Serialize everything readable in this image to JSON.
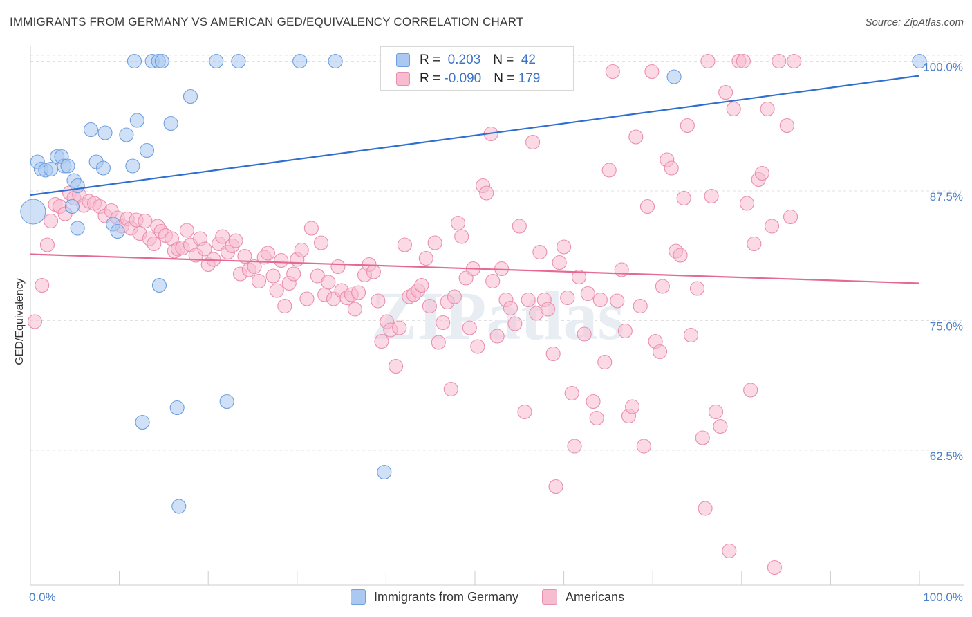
{
  "title": "IMMIGRANTS FROM GERMANY VS AMERICAN GED/EQUIVALENCY CORRELATION CHART",
  "source": "Source: ZipAtlas.com",
  "watermark": "ZIPatlas",
  "legend": {
    "rows": [
      {
        "r_label": "R = ",
        "r_value": " 0.203",
        "n_label": "N = ",
        "n_value": " 42",
        "color": "#aac8f0",
        "border": "#6f9fe0"
      },
      {
        "r_label": "R = ",
        "r_value": "-0.090",
        "n_label": "N = ",
        "n_value": "179",
        "color": "#f7bcd0",
        "border": "#ea8fae"
      }
    ]
  },
  "bottom_legend": [
    {
      "label": "Immigrants from Germany",
      "color": "#aac8f0",
      "border": "#6f9fe0"
    },
    {
      "label": "Americans",
      "color": "#f7bcd0",
      "border": "#ea8fae"
    }
  ],
  "chart_data": {
    "type": "scatter",
    "ylabel": "GED/Equivalency",
    "x_ticks": [
      "0.0%",
      "100.0%"
    ],
    "y_ticks": [
      {
        "value": 100,
        "label": "100.0%"
      },
      {
        "value": 87.5,
        "label": "87.5%"
      },
      {
        "value": 75,
        "label": "75.0%"
      },
      {
        "value": 62.5,
        "label": "62.5%"
      }
    ],
    "xlim": [
      0,
      100
    ],
    "ylim": [
      49.5,
      101.5
    ],
    "grid": true,
    "series": [
      {
        "name": "Immigrants from Germany",
        "color": "#aac8f0",
        "stroke": "#6f9fe0",
        "trend_color": "#2f6fcf",
        "trend": {
          "x": [
            0,
            100
          ],
          "y": [
            87.1,
            98.6
          ]
        },
        "points": [
          [
            0.3,
            85.5,
            18
          ],
          [
            0.8,
            90.3,
            10
          ],
          [
            1.2,
            89.6,
            10
          ],
          [
            1.7,
            89.5,
            10
          ],
          [
            2.3,
            89.6,
            10
          ],
          [
            3.0,
            90.8,
            10
          ],
          [
            3.5,
            90.8,
            10
          ],
          [
            3.8,
            89.9,
            10
          ],
          [
            4.2,
            89.9,
            10
          ],
          [
            4.9,
            88.5,
            10
          ],
          [
            5.3,
            88.0,
            10
          ],
          [
            4.7,
            86.0,
            10
          ],
          [
            5.3,
            83.9,
            10
          ],
          [
            6.8,
            93.4,
            10
          ],
          [
            7.4,
            90.3,
            10
          ],
          [
            8.2,
            89.7,
            10
          ],
          [
            8.4,
            93.1,
            10
          ],
          [
            9.3,
            84.3,
            10
          ],
          [
            9.8,
            83.6,
            10
          ],
          [
            10.8,
            92.9,
            10
          ],
          [
            11.5,
            89.9,
            10
          ],
          [
            11.7,
            100.0,
            10
          ],
          [
            12.0,
            94.3,
            10
          ],
          [
            12.6,
            65.2,
            10
          ],
          [
            13.1,
            91.4,
            10
          ],
          [
            13.7,
            100.0,
            10
          ],
          [
            14.4,
            100.0,
            10
          ],
          [
            14.5,
            78.4,
            10
          ],
          [
            14.8,
            100.0,
            10
          ],
          [
            15.8,
            94.0,
            10
          ],
          [
            16.5,
            66.6,
            10
          ],
          [
            16.7,
            57.1,
            10
          ],
          [
            18.0,
            96.6,
            10
          ],
          [
            20.9,
            100.0,
            10
          ],
          [
            22.1,
            67.2,
            10
          ],
          [
            23.4,
            100.0,
            10
          ],
          [
            30.3,
            100.0,
            10
          ],
          [
            34.3,
            100.0,
            10
          ],
          [
            39.8,
            60.4,
            10
          ],
          [
            47.3,
            100.0,
            10
          ],
          [
            72.4,
            98.5,
            10
          ],
          [
            100.0,
            100.0,
            10
          ]
        ]
      },
      {
        "name": "Americans",
        "color": "#f7bcd0",
        "stroke": "#ea8fae",
        "trend_color": "#e46a93",
        "trend": {
          "x": [
            0,
            100
          ],
          "y": [
            81.4,
            78.6
          ]
        },
        "points": [
          [
            0.5,
            74.9
          ],
          [
            1.3,
            78.4
          ],
          [
            1.9,
            82.3
          ],
          [
            2.3,
            84.6
          ],
          [
            2.8,
            86.2
          ],
          [
            3.3,
            86.0
          ],
          [
            3.9,
            85.3
          ],
          [
            4.4,
            87.3
          ],
          [
            4.9,
            86.8
          ],
          [
            5.5,
            87.1
          ],
          [
            6.0,
            86.1
          ],
          [
            6.6,
            86.5
          ],
          [
            7.2,
            86.3
          ],
          [
            7.8,
            86.0
          ],
          [
            8.4,
            85.1
          ],
          [
            9.1,
            85.6
          ],
          [
            9.8,
            84.9
          ],
          [
            10.3,
            84.1
          ],
          [
            10.9,
            84.8
          ],
          [
            11.3,
            83.9
          ],
          [
            11.9,
            84.7
          ],
          [
            12.3,
            83.4
          ],
          [
            12.9,
            84.6
          ],
          [
            13.4,
            82.9
          ],
          [
            13.9,
            82.4
          ],
          [
            14.3,
            84.1
          ],
          [
            14.7,
            83.6
          ],
          [
            15.2,
            83.2
          ],
          [
            15.9,
            82.9
          ],
          [
            16.2,
            81.7
          ],
          [
            16.6,
            81.9
          ],
          [
            17.1,
            82.0
          ],
          [
            17.6,
            83.7
          ],
          [
            18.0,
            82.3
          ],
          [
            18.6,
            81.3
          ],
          [
            19.1,
            82.9
          ],
          [
            19.6,
            81.9
          ],
          [
            20.0,
            80.4
          ],
          [
            20.6,
            80.9
          ],
          [
            21.2,
            82.4
          ],
          [
            21.6,
            83.1
          ],
          [
            22.2,
            81.6
          ],
          [
            22.7,
            82.2
          ],
          [
            23.1,
            82.7
          ],
          [
            23.6,
            79.5
          ],
          [
            24.1,
            81.2
          ],
          [
            24.6,
            79.9
          ],
          [
            25.2,
            80.2
          ],
          [
            25.7,
            78.8
          ],
          [
            26.3,
            81.1
          ],
          [
            26.7,
            81.5
          ],
          [
            27.3,
            79.3
          ],
          [
            27.7,
            77.9
          ],
          [
            28.2,
            80.8
          ],
          [
            28.6,
            76.4
          ],
          [
            29.1,
            78.6
          ],
          [
            29.6,
            79.5
          ],
          [
            30.0,
            80.9
          ],
          [
            30.5,
            81.8
          ],
          [
            31.1,
            77.1
          ],
          [
            31.6,
            83.9
          ],
          [
            32.3,
            79.3
          ],
          [
            32.7,
            82.5
          ],
          [
            33.1,
            77.5
          ],
          [
            33.5,
            78.7
          ],
          [
            34.1,
            77.1
          ],
          [
            34.6,
            80.2
          ],
          [
            35.0,
            77.9
          ],
          [
            35.6,
            77.2
          ],
          [
            36.1,
            77.5
          ],
          [
            36.5,
            76.1
          ],
          [
            36.9,
            77.7
          ],
          [
            37.6,
            79.4
          ],
          [
            38.1,
            80.4
          ],
          [
            38.6,
            79.7
          ],
          [
            39.1,
            76.9
          ],
          [
            39.5,
            73.0
          ],
          [
            40.1,
            74.9
          ],
          [
            40.5,
            74.1
          ],
          [
            41.1,
            70.6
          ],
          [
            41.5,
            74.3
          ],
          [
            42.1,
            82.3
          ],
          [
            42.6,
            77.3
          ],
          [
            43.1,
            77.5
          ],
          [
            43.6,
            77.9
          ],
          [
            44.0,
            78.4
          ],
          [
            44.5,
            81.0
          ],
          [
            44.9,
            76.4
          ],
          [
            45.5,
            82.5
          ],
          [
            45.9,
            72.9
          ],
          [
            46.4,
            74.8
          ],
          [
            46.9,
            76.8
          ],
          [
            47.3,
            68.4
          ],
          [
            47.7,
            77.3
          ],
          [
            48.1,
            84.4
          ],
          [
            48.5,
            83.1
          ],
          [
            49.0,
            79.1
          ],
          [
            49.4,
            74.3
          ],
          [
            49.8,
            80.0
          ],
          [
            50.3,
            72.5
          ],
          [
            50.9,
            88.0
          ],
          [
            51.3,
            87.3
          ],
          [
            51.8,
            93.0
          ],
          [
            52.0,
            78.8
          ],
          [
            52.5,
            73.5
          ],
          [
            53.0,
            80.0
          ],
          [
            53.5,
            77.0
          ],
          [
            54.0,
            76.2
          ],
          [
            54.5,
            74.7
          ],
          [
            55.0,
            84.1
          ],
          [
            55.6,
            66.2
          ],
          [
            56.0,
            77.0
          ],
          [
            56.5,
            92.2
          ],
          [
            56.9,
            75.7
          ],
          [
            57.3,
            81.6
          ],
          [
            57.8,
            77.0
          ],
          [
            58.2,
            76.1
          ],
          [
            58.8,
            71.8
          ],
          [
            59.1,
            59.0
          ],
          [
            59.5,
            80.6
          ],
          [
            60.0,
            82.1
          ],
          [
            60.4,
            77.2
          ],
          [
            60.9,
            68.0
          ],
          [
            61.2,
            62.9
          ],
          [
            61.7,
            79.2
          ],
          [
            62.3,
            73.7
          ],
          [
            62.7,
            77.6
          ],
          [
            63.3,
            67.2
          ],
          [
            63.7,
            65.6
          ],
          [
            64.1,
            77.0
          ],
          [
            64.6,
            71.0
          ],
          [
            65.1,
            89.5
          ],
          [
            65.5,
            99.0
          ],
          [
            66.0,
            76.9
          ],
          [
            66.5,
            79.9
          ],
          [
            66.9,
            74.0
          ],
          [
            67.3,
            65.8
          ],
          [
            67.7,
            66.7
          ],
          [
            68.1,
            92.7
          ],
          [
            68.6,
            76.4
          ],
          [
            69.0,
            62.9
          ],
          [
            69.4,
            86.0
          ],
          [
            69.9,
            99.0
          ],
          [
            70.3,
            73.0
          ],
          [
            70.8,
            72.0
          ],
          [
            71.1,
            78.3
          ],
          [
            71.6,
            90.5
          ],
          [
            72.1,
            89.7
          ],
          [
            72.6,
            81.7
          ],
          [
            73.1,
            81.3
          ],
          [
            73.5,
            86.8
          ],
          [
            73.9,
            93.8
          ],
          [
            74.3,
            73.6
          ],
          [
            75.0,
            78.1
          ],
          [
            75.6,
            63.7
          ],
          [
            75.9,
            56.9
          ],
          [
            76.2,
            100.0
          ],
          [
            76.6,
            87.0
          ],
          [
            77.1,
            66.2
          ],
          [
            77.6,
            64.8
          ],
          [
            78.2,
            97.0
          ],
          [
            78.6,
            52.8
          ],
          [
            79.1,
            95.4
          ],
          [
            79.7,
            100.0
          ],
          [
            80.2,
            100.0
          ],
          [
            80.6,
            86.3
          ],
          [
            81.0,
            68.3
          ],
          [
            81.4,
            82.4
          ],
          [
            81.9,
            88.6
          ],
          [
            82.3,
            89.2
          ],
          [
            82.9,
            95.4
          ],
          [
            83.4,
            84.1
          ],
          [
            83.7,
            51.2
          ],
          [
            84.2,
            100.0
          ],
          [
            85.1,
            93.8
          ],
          [
            85.5,
            85.0
          ],
          [
            85.9,
            100.0
          ]
        ]
      }
    ]
  }
}
